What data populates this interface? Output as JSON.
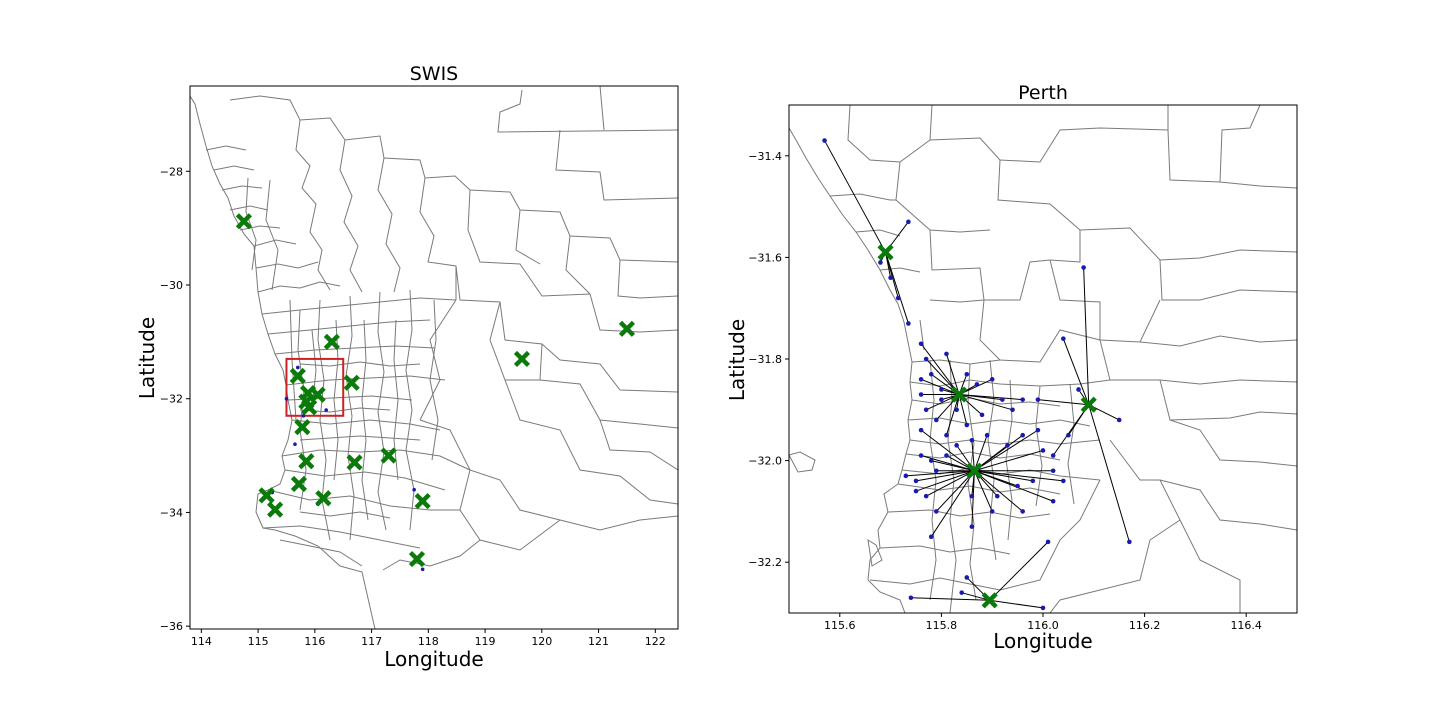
{
  "chart_data": [
    {
      "type": "map",
      "title": "SWIS",
      "xlabel": "Longitude",
      "ylabel": "Latitude",
      "xlim": [
        113.8,
        122.4
      ],
      "ylim": [
        -36.05,
        -26.5
      ],
      "xticks": [
        "114",
        "115",
        "116",
        "117",
        "118",
        "119",
        "120",
        "121",
        "122"
      ],
      "yticks": [
        "−28",
        "−30",
        "−32",
        "−34",
        "−36"
      ],
      "xtick_values": [
        114,
        115,
        116,
        117,
        118,
        119,
        120,
        121,
        122
      ],
      "ytick_values": [
        -28,
        -30,
        -32,
        -34,
        -36
      ],
      "marker_color": "#0a7a0a",
      "highlight_color": "#cc2222",
      "highlight_box": {
        "lon": [
          115.5,
          116.5
        ],
        "lat": [
          -32.3,
          -31.3
        ]
      },
      "stations": [
        {
          "lon": 114.75,
          "lat": -28.88
        },
        {
          "lon": 116.3,
          "lat": -31.0
        },
        {
          "lon": 115.7,
          "lat": -31.6
        },
        {
          "lon": 116.65,
          "lat": -31.72
        },
        {
          "lon": 115.88,
          "lat": -31.9
        },
        {
          "lon": 116.05,
          "lat": -31.93
        },
        {
          "lon": 115.85,
          "lat": -32.05
        },
        {
          "lon": 115.9,
          "lat": -32.15
        },
        {
          "lon": 115.78,
          "lat": -32.5
        },
        {
          "lon": 115.85,
          "lat": -33.1
        },
        {
          "lon": 116.7,
          "lat": -33.12
        },
        {
          "lon": 117.3,
          "lat": -33.0
        },
        {
          "lon": 115.72,
          "lat": -33.5
        },
        {
          "lon": 116.15,
          "lat": -33.75
        },
        {
          "lon": 115.15,
          "lat": -33.7
        },
        {
          "lon": 115.3,
          "lat": -33.95
        },
        {
          "lon": 117.9,
          "lat": -33.8
        },
        {
          "lon": 117.8,
          "lat": -34.82
        },
        {
          "lon": 119.65,
          "lat": -31.3
        },
        {
          "lon": 121.5,
          "lat": -30.77
        }
      ],
      "demand_points": [
        {
          "lon": 115.7,
          "lat": -31.45
        },
        {
          "lon": 115.65,
          "lat": -32.8
        },
        {
          "lon": 115.8,
          "lat": -32.3
        },
        {
          "lon": 116.2,
          "lat": -32.2
        },
        {
          "lon": 115.25,
          "lat": -33.65
        },
        {
          "lon": 116.05,
          "lat": -33.85
        },
        {
          "lon": 117.75,
          "lat": -33.6
        },
        {
          "lon": 117.9,
          "lat": -35.0
        },
        {
          "lon": 115.5,
          "lat": -32.0
        }
      ]
    },
    {
      "type": "map",
      "title": "Perth",
      "xlabel": "Longitude",
      "ylabel": "Latitude",
      "xlim": [
        115.5,
        116.5
      ],
      "ylim": [
        -32.3,
        -31.3
      ],
      "xticks": [
        "115.6",
        "115.8",
        "116.0",
        "116.2",
        "116.4"
      ],
      "yticks": [
        "−31.4",
        "−31.6",
        "−31.8",
        "−32.0",
        "−32.2"
      ],
      "xtick_values": [
        115.6,
        115.8,
        116.0,
        116.2,
        116.4
      ],
      "ytick_values": [
        -31.4,
        -31.6,
        -31.8,
        -32.0,
        -32.2
      ],
      "marker_color": "#0a7a0a",
      "point_color": "#1a1ab0",
      "stations": [
        {
          "id": "A",
          "lon": 115.69,
          "lat": -31.59
        },
        {
          "id": "B",
          "lon": 115.835,
          "lat": -31.87
        },
        {
          "id": "C",
          "lon": 116.09,
          "lat": -31.89
        },
        {
          "id": "D",
          "lon": 115.865,
          "lat": -32.02
        },
        {
          "id": "E",
          "lon": 115.895,
          "lat": -32.275
        }
      ],
      "demand_points": [
        {
          "s": "A",
          "lon": 115.57,
          "lat": -31.37
        },
        {
          "s": "A",
          "lon": 115.735,
          "lat": -31.53
        },
        {
          "s": "A",
          "lon": 115.7,
          "lat": -31.64
        },
        {
          "s": "A",
          "lon": 115.715,
          "lat": -31.68
        },
        {
          "s": "A",
          "lon": 115.735,
          "lat": -31.73
        },
        {
          "s": "A",
          "lon": 115.68,
          "lat": -31.61
        },
        {
          "s": "B",
          "lon": 115.76,
          "lat": -31.77
        },
        {
          "s": "B",
          "lon": 115.77,
          "lat": -31.8
        },
        {
          "s": "B",
          "lon": 115.78,
          "lat": -31.83
        },
        {
          "s": "B",
          "lon": 115.76,
          "lat": -31.84
        },
        {
          "s": "B",
          "lon": 115.76,
          "lat": -31.87
        },
        {
          "s": "B",
          "lon": 115.8,
          "lat": -31.88
        },
        {
          "s": "B",
          "lon": 115.77,
          "lat": -31.9
        },
        {
          "s": "B",
          "lon": 115.79,
          "lat": -31.92
        },
        {
          "s": "B",
          "lon": 115.81,
          "lat": -31.95
        },
        {
          "s": "B",
          "lon": 115.85,
          "lat": -31.83
        },
        {
          "s": "B",
          "lon": 115.87,
          "lat": -31.85
        },
        {
          "s": "B",
          "lon": 115.9,
          "lat": -31.84
        },
        {
          "s": "B",
          "lon": 115.92,
          "lat": -31.88
        },
        {
          "s": "B",
          "lon": 115.94,
          "lat": -31.9
        },
        {
          "s": "B",
          "lon": 115.88,
          "lat": -31.91
        },
        {
          "s": "B",
          "lon": 115.85,
          "lat": -31.93
        },
        {
          "s": "B",
          "lon": 115.83,
          "lat": -31.9
        },
        {
          "s": "B",
          "lon": 115.81,
          "lat": -31.79
        },
        {
          "s": "B",
          "lon": 115.8,
          "lat": -31.86
        },
        {
          "s": "B",
          "lon": 115.96,
          "lat": -31.88
        },
        {
          "s": "C",
          "lon": 116.08,
          "lat": -31.62
        },
        {
          "s": "C",
          "lon": 116.04,
          "lat": -31.76
        },
        {
          "s": "C",
          "lon": 116.07,
          "lat": -31.86
        },
        {
          "s": "C",
          "lon": 115.99,
          "lat": -31.88
        },
        {
          "s": "C",
          "lon": 116.15,
          "lat": -31.92
        },
        {
          "s": "C",
          "lon": 116.17,
          "lat": -32.16
        },
        {
          "s": "C",
          "lon": 116.02,
          "lat": -31.99
        },
        {
          "s": "C",
          "lon": 116.05,
          "lat": -31.95
        },
        {
          "s": "D",
          "lon": 115.76,
          "lat": -31.94
        },
        {
          "s": "D",
          "lon": 115.76,
          "lat": -31.99
        },
        {
          "s": "D",
          "lon": 115.78,
          "lat": -32.0
        },
        {
          "s": "D",
          "lon": 115.79,
          "lat": -32.02
        },
        {
          "s": "D",
          "lon": 115.75,
          "lat": -32.04
        },
        {
          "s": "D",
          "lon": 115.77,
          "lat": -32.07
        },
        {
          "s": "D",
          "lon": 115.79,
          "lat": -32.1
        },
        {
          "s": "D",
          "lon": 115.78,
          "lat": -32.15
        },
        {
          "s": "D",
          "lon": 115.86,
          "lat": -32.13
        },
        {
          "s": "D",
          "lon": 115.86,
          "lat": -32.07
        },
        {
          "s": "D",
          "lon": 115.91,
          "lat": -32.07
        },
        {
          "s": "D",
          "lon": 115.95,
          "lat": -32.05
        },
        {
          "s": "D",
          "lon": 116.02,
          "lat": -32.02
        },
        {
          "s": "D",
          "lon": 116.02,
          "lat": -32.08
        },
        {
          "s": "D",
          "lon": 115.98,
          "lat": -32.04
        },
        {
          "s": "D",
          "lon": 115.93,
          "lat": -31.97
        },
        {
          "s": "D",
          "lon": 115.96,
          "lat": -31.95
        },
        {
          "s": "D",
          "lon": 115.99,
          "lat": -31.94
        },
        {
          "s": "D",
          "lon": 116.0,
          "lat": -31.98
        },
        {
          "s": "D",
          "lon": 115.83,
          "lat": -31.97
        },
        {
          "s": "D",
          "lon": 115.86,
          "lat": -31.96
        },
        {
          "s": "D",
          "lon": 115.89,
          "lat": -31.95
        },
        {
          "s": "D",
          "lon": 115.81,
          "lat": -31.99
        },
        {
          "s": "D",
          "lon": 115.73,
          "lat": -32.03
        },
        {
          "s": "D",
          "lon": 115.75,
          "lat": -32.06
        },
        {
          "s": "D",
          "lon": 115.9,
          "lat": -32.1
        },
        {
          "s": "D",
          "lon": 116.04,
          "lat": -32.04
        },
        {
          "s": "D",
          "lon": 115.96,
          "lat": -32.1
        },
        {
          "s": "E",
          "lon": 115.74,
          "lat": -32.27
        },
        {
          "s": "E",
          "lon": 115.85,
          "lat": -32.23
        },
        {
          "s": "E",
          "lon": 115.84,
          "lat": -32.26
        },
        {
          "s": "E",
          "lon": 116.0,
          "lat": -32.29
        },
        {
          "s": "E",
          "lon": 116.01,
          "lat": -32.16
        }
      ]
    }
  ]
}
